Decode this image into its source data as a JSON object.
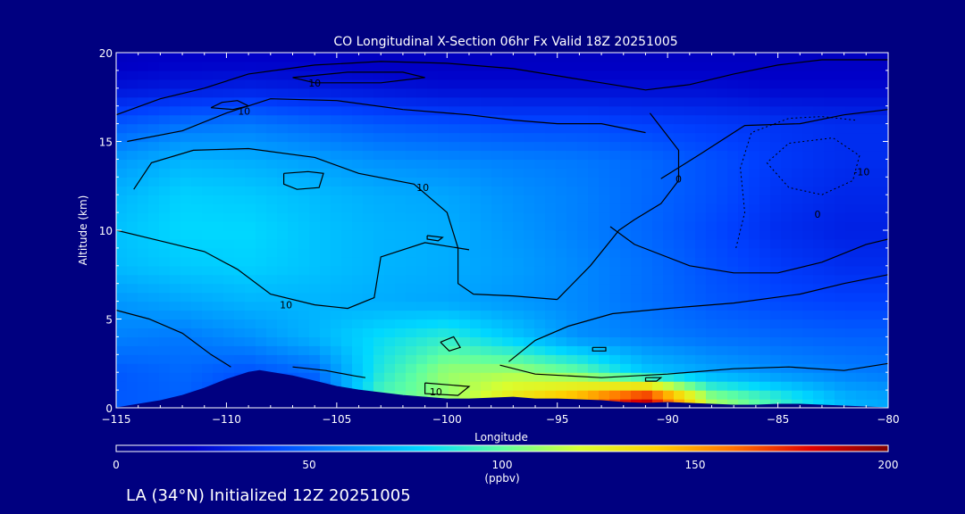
{
  "chart_data": {
    "type": "heatmap",
    "title": "CO Longitudinal X-Section 06hr  Fx Valid 18Z 20251005",
    "xlabel": "Longitude",
    "ylabel": "Altitude (km)",
    "xlim": [
      -115,
      -80
    ],
    "ylim": [
      0,
      20
    ],
    "x_ticks": [
      -115,
      -110,
      -105,
      -100,
      -95,
      -90,
      -85,
      -80
    ],
    "x_tick_labels": [
      "−115",
      "−110",
      "−105",
      "−100",
      "−95",
      "−90",
      "−85",
      "−80"
    ],
    "y_ticks": [
      0,
      5,
      10,
      15,
      20
    ],
    "y_tick_labels": [
      "0",
      "5",
      "10",
      "15",
      "20"
    ],
    "grid": false,
    "units": "(ppbv)",
    "colorbar": {
      "min": 0,
      "max": 200,
      "ticks": [
        0,
        50,
        100,
        150,
        200
      ],
      "tick_labels": [
        "0",
        "50",
        "100",
        "150",
        "200"
      ],
      "colors": [
        "#000080",
        "#0000c8",
        "#0040ff",
        "#0090ff",
        "#00d8ff",
        "#60ffa0",
        "#d8ff30",
        "#ffd000",
        "#ff7000",
        "#e00000",
        "#800000"
      ]
    },
    "x": [
      -115,
      -112,
      -109,
      -106,
      -103,
      -100,
      -97,
      -94,
      -91,
      -88,
      -85,
      -82,
      -80
    ],
    "y": [
      0.5,
      2,
      4,
      6,
      8,
      10,
      12,
      14,
      16,
      18,
      19.5
    ],
    "z": [
      [
        46,
        48,
        38,
        40,
        98,
        108,
        132,
        152,
        186,
        112,
        92,
        70,
        66
      ],
      [
        46,
        50,
        44,
        50,
        88,
        110,
        112,
        102,
        76,
        66,
        60,
        56,
        54
      ],
      [
        56,
        54,
        60,
        70,
        82,
        90,
        76,
        60,
        56,
        52,
        50,
        48,
        48
      ],
      [
        62,
        66,
        70,
        70,
        68,
        66,
        62,
        58,
        52,
        46,
        42,
        40,
        40
      ],
      [
        72,
        76,
        78,
        74,
        70,
        68,
        64,
        58,
        52,
        44,
        38,
        34,
        34
      ],
      [
        74,
        80,
        80,
        74,
        70,
        68,
        62,
        56,
        50,
        42,
        34,
        30,
        30
      ],
      [
        70,
        78,
        76,
        72,
        68,
        66,
        60,
        56,
        50,
        44,
        36,
        32,
        32
      ],
      [
        62,
        70,
        68,
        64,
        60,
        58,
        56,
        54,
        50,
        44,
        38,
        34,
        34
      ],
      [
        46,
        52,
        54,
        50,
        46,
        44,
        42,
        42,
        40,
        38,
        36,
        34,
        34
      ],
      [
        26,
        28,
        30,
        28,
        26,
        24,
        24,
        24,
        24,
        24,
        22,
        22,
        22
      ],
      [
        18,
        20,
        20,
        20,
        18,
        18,
        18,
        18,
        18,
        18,
        18,
        18,
        18
      ]
    ],
    "terrain": {
      "lon": [
        -115,
        -114,
        -113,
        -112,
        -111,
        -110,
        -109,
        -108.5,
        -108,
        -107,
        -106,
        -105,
        -104,
        -103,
        -102,
        -101,
        -100,
        -99,
        -98,
        -97,
        -96,
        -95,
        -94,
        -93,
        -92,
        -91,
        -90,
        -89,
        -88,
        -87,
        -86,
        -85,
        -84,
        -83,
        -82,
        -81,
        -80
      ],
      "alt": [
        0,
        0.2,
        0.4,
        0.7,
        1.1,
        1.6,
        2.0,
        2.1,
        2.0,
        1.8,
        1.5,
        1.2,
        1.0,
        0.85,
        0.7,
        0.6,
        0.5,
        0.5,
        0.55,
        0.6,
        0.5,
        0.5,
        0.45,
        0.4,
        0.3,
        0.25,
        0.3,
        0.25,
        0.2,
        0.15,
        0.15,
        0.2,
        0.2,
        0.15,
        0.1,
        0.05,
        0
      ]
    },
    "contour_labels": [
      {
        "text": "10",
        "lon": -109.2,
        "alt": 16.7
      },
      {
        "text": "10",
        "lon": -106.0,
        "alt": 18.3
      },
      {
        "text": "10",
        "lon": -101.1,
        "alt": 12.4
      },
      {
        "text": "10",
        "lon": -107.3,
        "alt": 5.8
      },
      {
        "text": "10",
        "lon": -100.5,
        "alt": 0.9
      },
      {
        "text": "0",
        "lon": -89.5,
        "alt": 12.9
      },
      {
        "text": "0",
        "lon": -83.2,
        "alt": 10.9
      },
      {
        "text": "-10",
        "lon": -81.2,
        "alt": 13.3
      }
    ],
    "contours_solid": [
      [
        [
          -115,
          16.5
        ],
        [
          -113,
          17.4
        ],
        [
          -111,
          18.0
        ],
        [
          -109,
          18.8
        ],
        [
          -106,
          19.3
        ],
        [
          -103,
          19.5
        ],
        [
          -100,
          19.4
        ],
        [
          -97,
          19.1
        ],
        [
          -95,
          18.7
        ],
        [
          -93,
          18.3
        ],
        [
          -91,
          17.9
        ],
        [
          -89,
          18.2
        ],
        [
          -87,
          18.8
        ],
        [
          -85,
          19.3
        ],
        [
          -83,
          19.6
        ],
        [
          -80,
          19.6
        ]
      ],
      [
        [
          -114.5,
          15.0
        ],
        [
          -112,
          15.6
        ],
        [
          -110,
          16.6
        ],
        [
          -108,
          17.4
        ],
        [
          -105,
          17.3
        ],
        [
          -102,
          16.8
        ],
        [
          -99,
          16.5
        ],
        [
          -97,
          16.2
        ],
        [
          -95,
          16.0
        ],
        [
          -93,
          16.0
        ],
        [
          -91,
          15.5
        ]
      ],
      [
        [
          -114.2,
          12.3
        ],
        [
          -113.4,
          13.8
        ],
        [
          -111.5,
          14.5
        ],
        [
          -109,
          14.6
        ],
        [
          -106,
          14.1
        ],
        [
          -104,
          13.2
        ],
        [
          -101.5,
          12.6
        ],
        [
          -100,
          11.0
        ],
        [
          -99.5,
          9.0
        ],
        [
          -99.5,
          7.0
        ],
        [
          -98.8,
          6.4
        ],
        [
          -97,
          6.3
        ],
        [
          -95,
          6.1
        ]
      ],
      [
        [
          -115,
          10.0
        ],
        [
          -113,
          9.4
        ],
        [
          -111,
          8.8
        ],
        [
          -109.5,
          7.8
        ],
        [
          -108,
          6.4
        ],
        [
          -106,
          5.8
        ],
        [
          -104.5,
          5.6
        ],
        [
          -103.3,
          6.2
        ],
        [
          -103,
          8.5
        ],
        [
          -101,
          9.3
        ],
        [
          -99,
          8.9
        ]
      ],
      [
        [
          -115,
          5.5
        ],
        [
          -113.5,
          5.0
        ],
        [
          -112,
          4.2
        ],
        [
          -110.7,
          3.0
        ],
        [
          -109.8,
          2.3
        ]
      ],
      [
        [
          -107,
          2.3
        ],
        [
          -105.5,
          2.1
        ],
        [
          -104.2,
          1.8
        ],
        [
          -103.7,
          1.7
        ]
      ],
      [
        [
          -97.6,
          2.4
        ],
        [
          -96,
          1.9
        ],
        [
          -93,
          1.7
        ],
        [
          -90,
          1.9
        ],
        [
          -87,
          2.2
        ],
        [
          -84.5,
          2.3
        ],
        [
          -82,
          2.1
        ],
        [
          -80,
          2.5
        ]
      ],
      [
        [
          -97.2,
          2.6
        ],
        [
          -96,
          3.8
        ],
        [
          -94.5,
          4.6
        ],
        [
          -92.5,
          5.3
        ],
        [
          -90,
          5.6
        ],
        [
          -87,
          5.9
        ],
        [
          -84,
          6.4
        ],
        [
          -82,
          7.0
        ],
        [
          -80,
          7.5
        ]
      ],
      [
        [
          -95,
          6.1
        ],
        [
          -93.5,
          8.0
        ],
        [
          -92.2,
          10.0
        ],
        [
          -91.5,
          10.6
        ],
        [
          -90.3,
          11.5
        ],
        [
          -89.5,
          12.8
        ],
        [
          -89.5,
          14.5
        ],
        [
          -90.8,
          16.6
        ]
      ],
      [
        [
          -92.6,
          10.2
        ],
        [
          -91.5,
          9.2
        ],
        [
          -89,
          8.0
        ],
        [
          -87,
          7.6
        ],
        [
          -85,
          7.6
        ],
        [
          -83,
          8.2
        ],
        [
          -81,
          9.2
        ],
        [
          -80,
          9.5
        ]
      ],
      [
        [
          -90.3,
          12.9
        ],
        [
          -88.5,
          14.3
        ],
        [
          -86.5,
          15.9
        ],
        [
          -84,
          16.0
        ],
        [
          -82,
          16.5
        ],
        [
          -80,
          16.8
        ]
      ]
    ],
    "contours_dashed": [
      [
        [
          -86.9,
          9.0
        ],
        [
          -86.5,
          11.0
        ],
        [
          -86.7,
          13.5
        ],
        [
          -86.2,
          15.5
        ],
        [
          -84.5,
          16.3
        ],
        [
          -83,
          16.4
        ],
        [
          -81.5,
          16.2
        ]
      ],
      [
        [
          -85.5,
          13.8
        ],
        [
          -84.5,
          12.4
        ],
        [
          -83,
          12.0
        ],
        [
          -81.6,
          12.8
        ],
        [
          -81.3,
          14.2
        ],
        [
          -82.5,
          15.2
        ],
        [
          -84.5,
          14.9
        ],
        [
          -85.5,
          13.8
        ]
      ]
    ],
    "contours_closed": [
      [
        [
          -110.7,
          16.9
        ],
        [
          -110.2,
          17.2
        ],
        [
          -109.5,
          17.3
        ],
        [
          -109.0,
          17.0
        ],
        [
          -109.7,
          16.8
        ],
        [
          -110.7,
          16.9
        ]
      ],
      [
        [
          -107,
          18.6
        ],
        [
          -104.5,
          18.9
        ],
        [
          -102,
          18.9
        ],
        [
          -101,
          18.6
        ],
        [
          -103,
          18.3
        ],
        [
          -106,
          18.3
        ],
        [
          -107,
          18.6
        ]
      ],
      [
        [
          -107.4,
          13.2
        ],
        [
          -106.3,
          13.3
        ],
        [
          -105.6,
          13.2
        ],
        [
          -105.8,
          12.4
        ],
        [
          -106.8,
          12.3
        ],
        [
          -107.4,
          12.6
        ],
        [
          -107.4,
          13.2
        ]
      ],
      [
        [
          -100.9,
          9.7
        ],
        [
          -100.2,
          9.6
        ],
        [
          -100.4,
          9.4
        ],
        [
          -100.9,
          9.5
        ],
        [
          -100.9,
          9.7
        ]
      ],
      [
        [
          -100.3,
          3.7
        ],
        [
          -99.7,
          4.0
        ],
        [
          -99.4,
          3.4
        ],
        [
          -99.9,
          3.2
        ],
        [
          -100.3,
          3.7
        ]
      ],
      [
        [
          -101,
          1.4
        ],
        [
          -99,
          1.2
        ],
        [
          -99.5,
          0.7
        ],
        [
          -101,
          0.8
        ],
        [
          -101,
          1.4
        ]
      ],
      [
        [
          -93.4,
          3.4
        ],
        [
          -92.8,
          3.4
        ],
        [
          -92.8,
          3.2
        ],
        [
          -93.4,
          3.2
        ],
        [
          -93.4,
          3.4
        ]
      ],
      [
        [
          -91,
          1.7
        ],
        [
          -90.3,
          1.7
        ],
        [
          -90.5,
          1.5
        ],
        [
          -91,
          1.5
        ],
        [
          -91,
          1.7
        ]
      ]
    ]
  },
  "footer": {
    "location_text": "LA (34°N) Initialized 12Z 20251005"
  }
}
